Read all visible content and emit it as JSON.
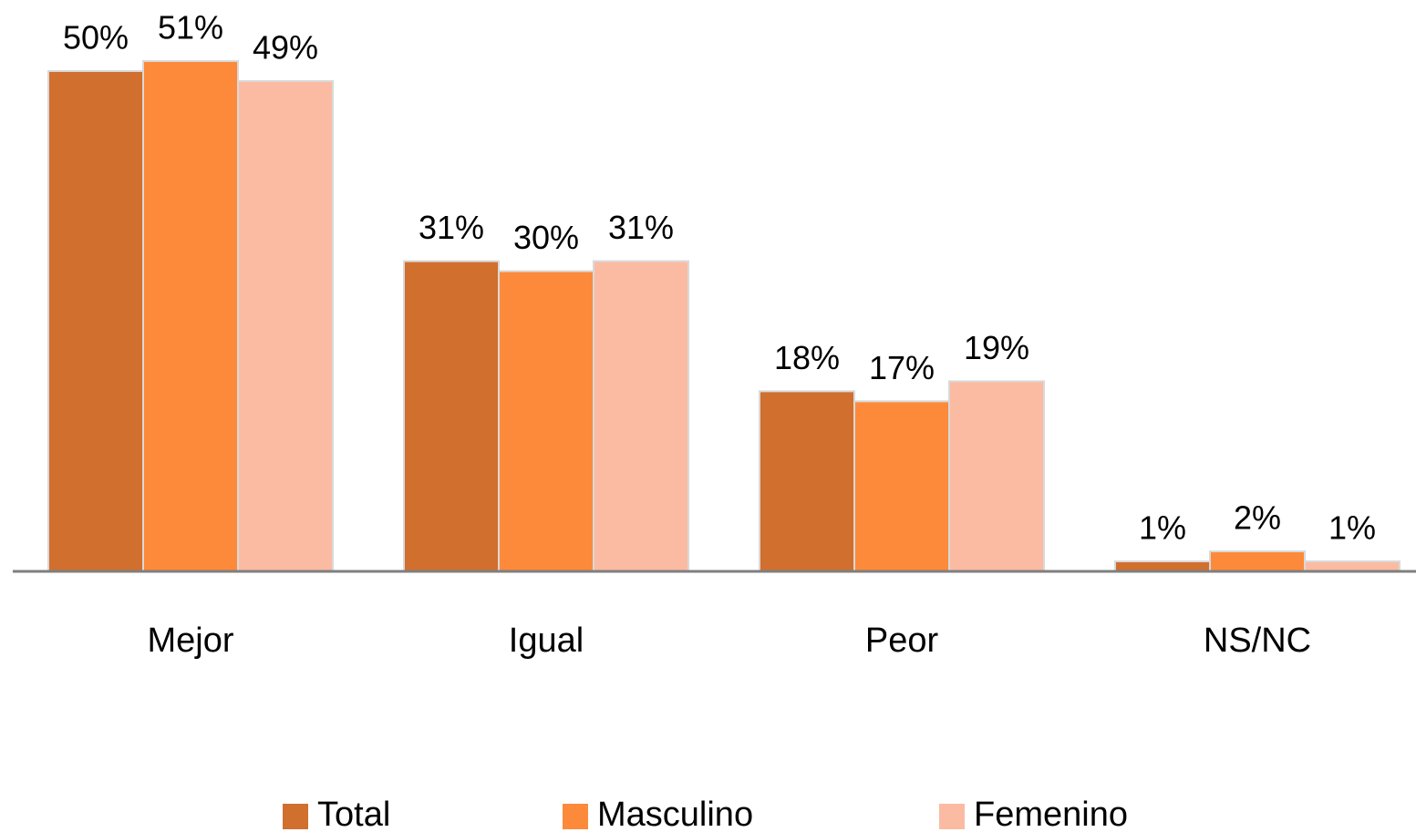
{
  "chart_data": {
    "type": "bar",
    "categories": [
      "Mejor",
      "Igual",
      "Peor",
      "NS/NC"
    ],
    "series": [
      {
        "name": "Total",
        "color": "#d16f2e",
        "values": [
          50,
          31,
          18,
          1
        ],
        "value_labels": [
          "50%",
          "31%",
          "18%",
          "1%"
        ]
      },
      {
        "name": "Masculino",
        "color": "#fd8a3a",
        "values": [
          51,
          30,
          17,
          2
        ],
        "value_labels": [
          "51%",
          "30%",
          "17%",
          "2%"
        ]
      },
      {
        "name": "Femenino",
        "color": "#fbbba2",
        "values": [
          49,
          31,
          19,
          1
        ],
        "value_labels": [
          "49%",
          "31%",
          "19%",
          "1%"
        ]
      }
    ],
    "legend": "bottom"
  }
}
